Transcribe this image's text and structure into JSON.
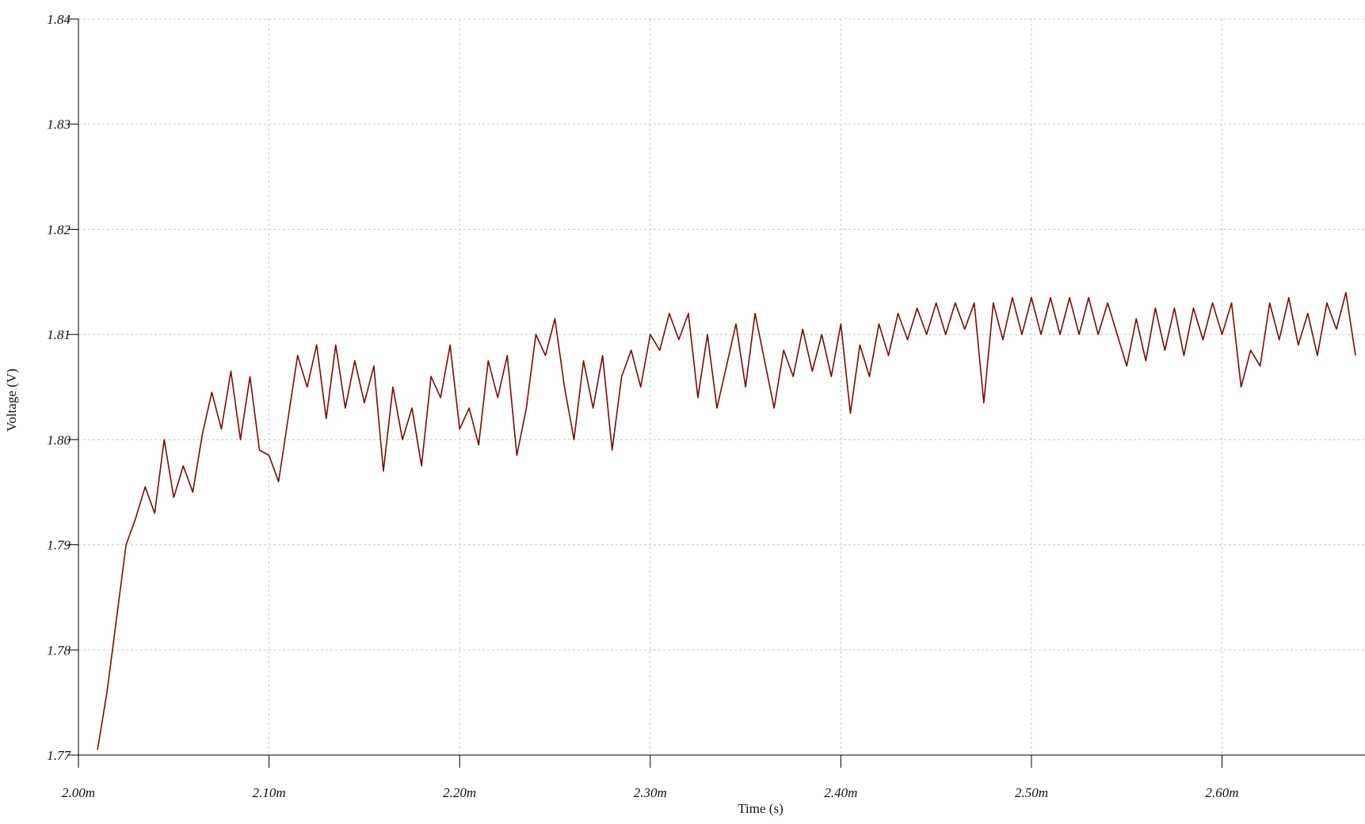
{
  "chart_data": {
    "type": "line",
    "x_label": "Time (s)",
    "y_label": "Voltage (V)",
    "xlim": [
      2.0,
      2.675
    ],
    "ylim": [
      1.77,
      1.84
    ],
    "xticks": [
      {
        "value": 2.0,
        "label": "2.00m"
      },
      {
        "value": 2.1,
        "label": "2.10m"
      },
      {
        "value": 2.2,
        "label": "2.20m"
      },
      {
        "value": 2.3,
        "label": "2.30m"
      },
      {
        "value": 2.4,
        "label": "2.40m"
      },
      {
        "value": 2.5,
        "label": "2.50m"
      },
      {
        "value": 2.6,
        "label": "2.60m"
      }
    ],
    "yticks": [
      1.77,
      1.78,
      1.79,
      {
        "value": 1.8,
        "label": "1.80"
      },
      1.81,
      1.82,
      1.83,
      1.84
    ],
    "grid": true,
    "series": [
      {
        "color": "#7a0a0a",
        "x": [
          2.01,
          2.015,
          2.02,
          2.025,
          2.03,
          2.035,
          2.04,
          2.045,
          2.05,
          2.055,
          2.06,
          2.065,
          2.07,
          2.075,
          2.08,
          2.085,
          2.09,
          2.095,
          2.1,
          2.105,
          2.11,
          2.115,
          2.12,
          2.125,
          2.13,
          2.135,
          2.14,
          2.145,
          2.15,
          2.155,
          2.16,
          2.165,
          2.17,
          2.175,
          2.18,
          2.185,
          2.19,
          2.195,
          2.2,
          2.205,
          2.21,
          2.215,
          2.22,
          2.225,
          2.23,
          2.235,
          2.24,
          2.245,
          2.25,
          2.255,
          2.26,
          2.265,
          2.27,
          2.275,
          2.28,
          2.285,
          2.29,
          2.295,
          2.3,
          2.305,
          2.31,
          2.315,
          2.32,
          2.325,
          2.33,
          2.335,
          2.34,
          2.345,
          2.35,
          2.355,
          2.36,
          2.365,
          2.37,
          2.375,
          2.38,
          2.385,
          2.39,
          2.395,
          2.4,
          2.405,
          2.41,
          2.415,
          2.42,
          2.425,
          2.43,
          2.435,
          2.44,
          2.445,
          2.45,
          2.455,
          2.46,
          2.465,
          2.47,
          2.475,
          2.48,
          2.485,
          2.49,
          2.495,
          2.5,
          2.505,
          2.51,
          2.515,
          2.52,
          2.525,
          2.53,
          2.535,
          2.54,
          2.545,
          2.55,
          2.555,
          2.56,
          2.565,
          2.57,
          2.575,
          2.58,
          2.585,
          2.59,
          2.595,
          2.6,
          2.605,
          2.61,
          2.615,
          2.62,
          2.625,
          2.63,
          2.635,
          2.64,
          2.645,
          2.65,
          2.655,
          2.66,
          2.665,
          2.67
        ],
        "values": [
          1.7705,
          1.776,
          1.783,
          1.79,
          1.7925,
          1.7955,
          1.793,
          1.8,
          1.7945,
          1.7975,
          1.795,
          1.8005,
          1.8045,
          1.801,
          1.8065,
          1.8,
          1.806,
          1.799,
          1.7985,
          1.796,
          1.802,
          1.808,
          1.805,
          1.809,
          1.802,
          1.809,
          1.803,
          1.8075,
          1.8035,
          1.807,
          1.797,
          1.805,
          1.8,
          1.803,
          1.7975,
          1.806,
          1.804,
          1.809,
          1.801,
          1.803,
          1.7995,
          1.8075,
          1.804,
          1.808,
          1.7985,
          1.803,
          1.81,
          1.808,
          1.8115,
          1.805,
          1.8,
          1.8075,
          1.803,
          1.808,
          1.799,
          1.806,
          1.8085,
          1.805,
          1.81,
          1.8085,
          1.812,
          1.8095,
          1.812,
          1.804,
          1.81,
          1.803,
          1.807,
          1.811,
          1.805,
          1.812,
          1.8075,
          1.803,
          1.8085,
          1.806,
          1.8105,
          1.8065,
          1.81,
          1.806,
          1.811,
          1.8025,
          1.809,
          1.806,
          1.811,
          1.808,
          1.812,
          1.8095,
          1.8125,
          1.81,
          1.813,
          1.81,
          1.813,
          1.8105,
          1.813,
          1.8035,
          1.813,
          1.8095,
          1.8135,
          1.81,
          1.8135,
          1.81,
          1.8135,
          1.81,
          1.8135,
          1.81,
          1.8135,
          1.81,
          1.813,
          1.81,
          1.807,
          1.8115,
          1.8075,
          1.8125,
          1.8085,
          1.8125,
          1.808,
          1.8125,
          1.8095,
          1.813,
          1.81,
          1.813,
          1.805,
          1.8085,
          1.807,
          1.813,
          1.8095,
          1.8135,
          1.809,
          1.812,
          1.808,
          1.813,
          1.8105,
          1.814,
          1.808
        ]
      }
    ]
  }
}
